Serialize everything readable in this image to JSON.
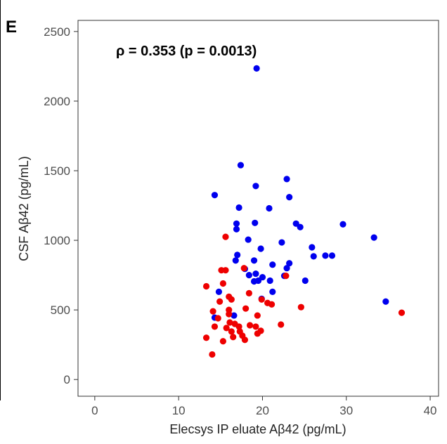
{
  "chart_data": {
    "type": "scatter",
    "panel_label": "E",
    "annotation": "ρ = 0.353 (p = 0.0013)",
    "xlabel": "Elecsys IP eluate  Aβ42 (pg/mL)",
    "ylabel": "CSF Aβ42 (pg/mL)",
    "xlim": [
      -2,
      41
    ],
    "ylim": [
      -120,
      2580
    ],
    "xticks": [
      0,
      10,
      20,
      30,
      40
    ],
    "yticks": [
      0,
      500,
      1000,
      1500,
      2000,
      2500
    ],
    "grid": false,
    "colors": {
      "blue": "#0000ee",
      "red": "#ee0000"
    },
    "series": [
      {
        "color": "blue",
        "points": [
          [
            19.3,
            2235
          ],
          [
            17.4,
            1540
          ],
          [
            22.9,
            1440
          ],
          [
            19.2,
            1390
          ],
          [
            14.3,
            1325
          ],
          [
            23.2,
            1310
          ],
          [
            17.2,
            1235
          ],
          [
            20.8,
            1230
          ],
          [
            24.0,
            1120
          ],
          [
            19.1,
            1125
          ],
          [
            16.9,
            1120
          ],
          [
            24.5,
            1095
          ],
          [
            29.6,
            1115
          ],
          [
            16.9,
            1080
          ],
          [
            33.3,
            1020
          ],
          [
            18.3,
            1005
          ],
          [
            22.3,
            985
          ],
          [
            25.9,
            950
          ],
          [
            19.8,
            940
          ],
          [
            26.1,
            885
          ],
          [
            27.5,
            890
          ],
          [
            28.3,
            890
          ],
          [
            17.0,
            895
          ],
          [
            23.2,
            835
          ],
          [
            21.2,
            825
          ],
          [
            19.0,
            855
          ],
          [
            16.8,
            855
          ],
          [
            17.9,
            795
          ],
          [
            22.9,
            800
          ],
          [
            18.4,
            750
          ],
          [
            19.2,
            760
          ],
          [
            20.0,
            735
          ],
          [
            19.5,
            710
          ],
          [
            20.9,
            710
          ],
          [
            25.1,
            710
          ],
          [
            22.6,
            745
          ],
          [
            19.0,
            705
          ],
          [
            21.2,
            630
          ],
          [
            14.8,
            630
          ],
          [
            19.9,
            580
          ],
          [
            34.7,
            560
          ],
          [
            14.3,
            445
          ],
          [
            16.6,
            460
          ]
        ]
      },
      {
        "color": "red",
        "points": [
          [
            15.6,
            1025
          ],
          [
            15.1,
            785
          ],
          [
            15.6,
            785
          ],
          [
            17.8,
            800
          ],
          [
            22.8,
            745
          ],
          [
            13.3,
            670
          ],
          [
            15.3,
            690
          ],
          [
            18.4,
            620
          ],
          [
            16.0,
            595
          ],
          [
            16.3,
            575
          ],
          [
            19.9,
            575
          ],
          [
            14.9,
            560
          ],
          [
            20.6,
            550
          ],
          [
            21.1,
            540
          ],
          [
            24.6,
            520
          ],
          [
            14.1,
            490
          ],
          [
            16.0,
            500
          ],
          [
            18.0,
            510
          ],
          [
            14.7,
            440
          ],
          [
            16.0,
            470
          ],
          [
            19.4,
            460
          ],
          [
            36.6,
            480
          ],
          [
            16.1,
            410
          ],
          [
            16.7,
            400
          ],
          [
            17.2,
            380
          ],
          [
            15.7,
            370
          ],
          [
            18.5,
            390
          ],
          [
            19.2,
            380
          ],
          [
            19.8,
            350
          ],
          [
            22.2,
            395
          ],
          [
            16.3,
            345
          ],
          [
            17.3,
            345
          ],
          [
            19.4,
            330
          ],
          [
            14.3,
            380
          ],
          [
            17.6,
            315
          ],
          [
            13.3,
            300
          ],
          [
            16.5,
            305
          ],
          [
            15.3,
            275
          ],
          [
            17.9,
            285
          ],
          [
            14.0,
            180
          ]
        ]
      }
    ]
  }
}
